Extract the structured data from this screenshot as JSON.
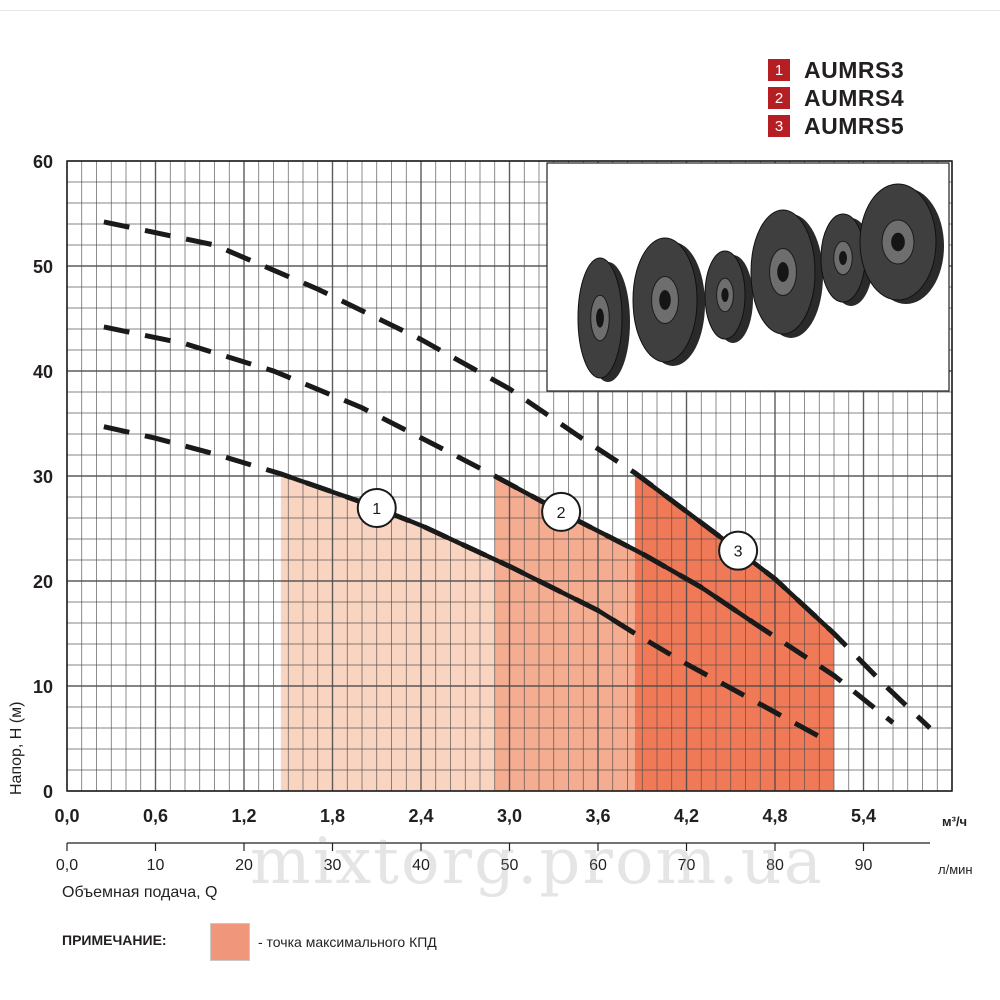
{
  "legend": [
    {
      "num": "1",
      "name": "AUMRS3"
    },
    {
      "num": "2",
      "name": "AUMRS4"
    },
    {
      "num": "3",
      "name": "AUMRS5"
    }
  ],
  "note": {
    "label": "ПРИМЕЧАНИЕ:",
    "text": "- точка максимального КПД"
  },
  "watermark": "mixtorg.prom.ua",
  "colors": {
    "badge": "#b51f24",
    "region1": "#f9d4c1",
    "region2": "#f5ad91",
    "region3": "#f07a58",
    "curve": "#1a1a1a",
    "grid": "#4a4a4a"
  },
  "chart_data": {
    "type": "line",
    "ylabel": "Напор, Н (м)",
    "xlabel": "Объемная подача, Q",
    "x_unit_primary": "м³/ч",
    "x_unit_secondary": "л/мин",
    "ylim": [
      0,
      60
    ],
    "xlim": [
      0,
      6
    ],
    "yticks": [
      "0",
      "10",
      "20",
      "30",
      "40",
      "50",
      "60"
    ],
    "xticks_primary": [
      "0,0",
      "0,6",
      "1,2",
      "1,8",
      "2,4",
      "3,0",
      "3,6",
      "4,2",
      "4,8",
      "5,4"
    ],
    "xticks_secondary": [
      "0,0",
      "10",
      "20",
      "30",
      "40",
      "50",
      "60",
      "70",
      "80",
      "90"
    ],
    "grid": true,
    "series": [
      {
        "name": "AUMRS3",
        "label": "1",
        "points": [
          [
            0.25,
            34.7
          ],
          [
            0.6,
            33.6
          ],
          [
            1.0,
            32.1
          ],
          [
            1.45,
            30.2
          ],
          [
            2.0,
            27.5
          ],
          [
            2.4,
            25.3
          ],
          [
            3.0,
            21.4
          ],
          [
            3.6,
            17.2
          ],
          [
            3.85,
            15.0
          ],
          [
            4.2,
            12.1
          ],
          [
            4.8,
            7.5
          ],
          [
            5.15,
            4.8
          ]
        ],
        "solid_range": [
          1.45,
          3.85
        ],
        "label_at": 2.1,
        "region": [
          1.45,
          3.85
        ]
      },
      {
        "name": "AUMRS4",
        "label": "2",
        "points": [
          [
            0.25,
            44.2
          ],
          [
            0.8,
            42.6
          ],
          [
            1.4,
            40.0
          ],
          [
            2.0,
            36.5
          ],
          [
            2.6,
            32.2
          ],
          [
            2.9,
            30.0
          ],
          [
            3.4,
            26.2
          ],
          [
            3.9,
            22.6
          ],
          [
            4.3,
            19.4
          ],
          [
            4.7,
            15.6
          ],
          [
            5.2,
            11.0
          ],
          [
            5.6,
            6.5
          ]
        ],
        "solid_range": [
          2.9,
          4.7
        ],
        "label_at": 3.35,
        "region": [
          2.9,
          4.7
        ]
      },
      {
        "name": "AUMRS5",
        "label": "3",
        "points": [
          [
            0.25,
            54.2
          ],
          [
            1.0,
            52.0
          ],
          [
            1.7,
            47.8
          ],
          [
            2.4,
            43.0
          ],
          [
            3.0,
            38.3
          ],
          [
            3.5,
            33.5
          ],
          [
            3.85,
            30.3
          ],
          [
            4.4,
            24.5
          ],
          [
            4.8,
            20.2
          ],
          [
            5.2,
            15.0
          ],
          [
            5.55,
            10.0
          ],
          [
            5.85,
            6.0
          ]
        ],
        "solid_range": [
          3.85,
          5.2
        ],
        "label_at": 4.55,
        "region": [
          3.85,
          5.2
        ]
      }
    ]
  }
}
